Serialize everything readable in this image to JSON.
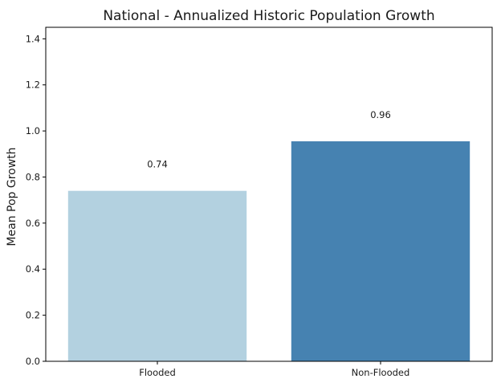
{
  "chart_data": {
    "type": "bar",
    "title": "National - Annualized Historic Population Growth",
    "xlabel": "",
    "ylabel": "Mean Pop Growth",
    "categories": [
      "Flooded",
      "Non-Flooded"
    ],
    "values": [
      0.74,
      0.955
    ],
    "value_labels": [
      "0.74",
      "0.96"
    ],
    "ylim": [
      0,
      1.45
    ],
    "yticks": [
      0.0,
      0.2,
      0.4,
      0.6,
      0.8,
      1.0,
      1.2,
      1.4
    ],
    "ytick_labels": [
      "0.0",
      "0.2",
      "0.4",
      "0.6",
      "0.8",
      "1.0",
      "1.2",
      "1.4"
    ],
    "bar_colors": [
      "#b3d1e0",
      "#4682b1"
    ],
    "grid": false,
    "legend": "none"
  }
}
